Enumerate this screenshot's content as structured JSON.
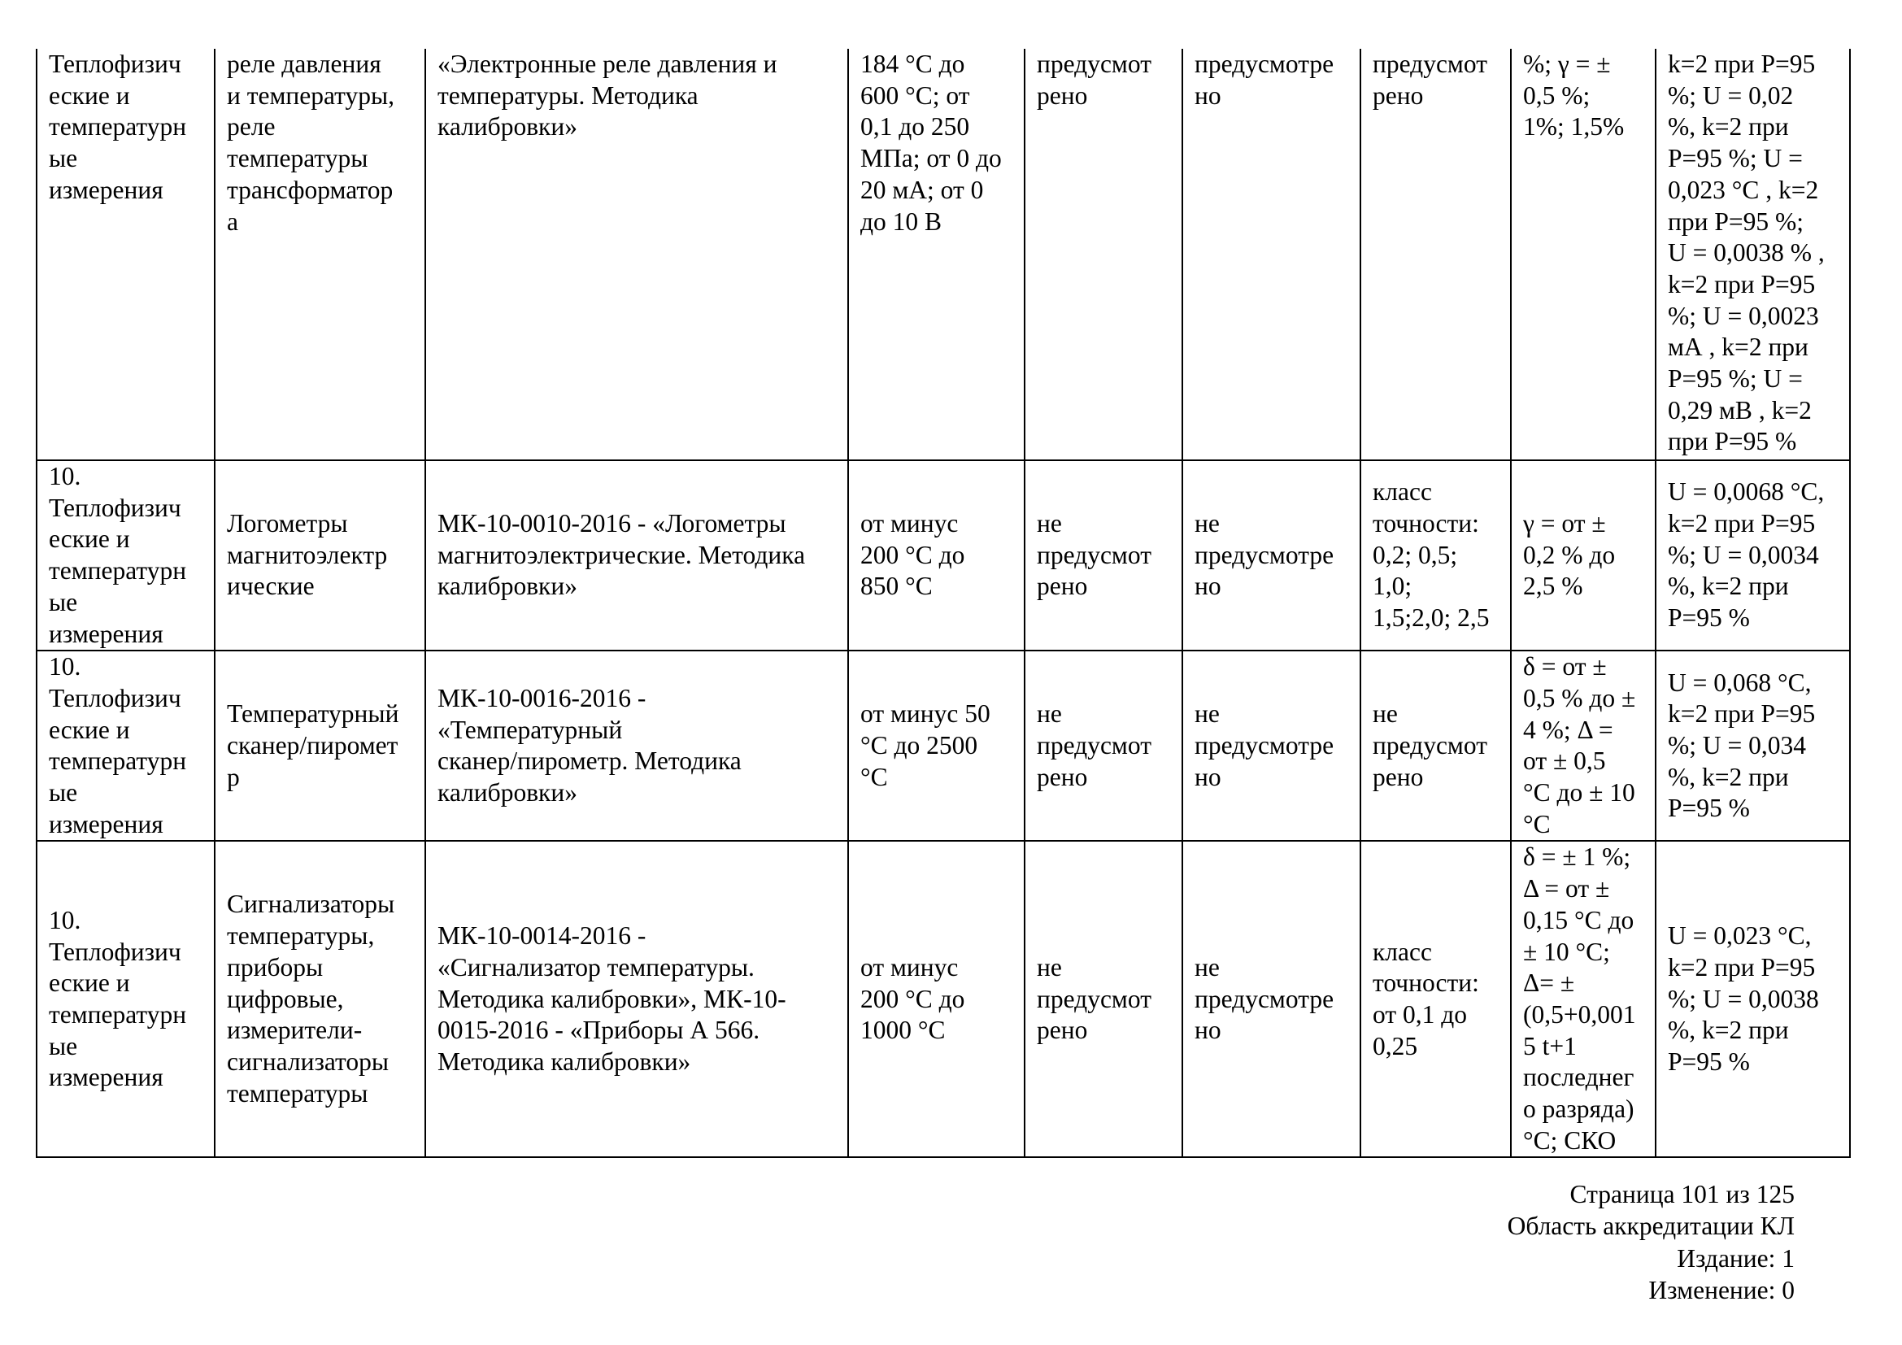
{
  "table": {
    "rows": [
      {
        "cells": [
          "Теплофизич\nеские и\nтемпературн\nые\nизмерения",
          "реле давления\nи температуры,\nреле\nтемпературы\nтрансформатор\nа",
          "«Электронные реле давления и\nтемпературы. Методика\nкалибровки»",
          "184 °С до\n600 °С; от\n0,1 до 250\nМПа; от 0 до\n20 мА; от 0\nдо 10 В",
          "предусмот\nрено",
          "предусмотре\nно",
          "предусмот\nрено",
          "%; γ = ±\n0,5 %;\n1%; 1,5%",
          "k=2 при Р=95\n%; U = 0,02\n%, k=2 при\nР=95 %; U =\n0,023 °С , k=2\nпри Р=95 %;\nU = 0,0038 % ,\nk=2 при Р=95\n%; U = 0,0023\nмА , k=2 при\nР=95 %; U =\n0,29 мВ , k=2\nпри Р=95 %"
        ]
      },
      {
        "cells": [
          "10.\nТеплофизич\nеские и\nтемпературн\nые\nизмерения",
          "Логометры\nмагнитоэлектр\nические",
          "МК-10-0010-2016 - «Логометры\nмагнитоэлектрические. Методика\nкалибровки»",
          "от минус\n200 °С до\n850 °С",
          "не\nпредусмот\nрено",
          "не\nпредусмотре\nно",
          "класс\nточности:\n0,2; 0,5;\n1,0;\n1,5;2,0; 2,5",
          "γ = от ±\n0,2 % до\n2,5 %",
          "U = 0,0068 °С,\nk=2 при Р=95\n%; U = 0,0034\n%, k=2 при\nР=95 %"
        ]
      },
      {
        "cells": [
          "10.\nТеплофизич\nеские и\nтемпературн\nые\nизмерения",
          "Температурный\nсканер/пиромет\nр",
          "МК-10-0016-2016 -\n«Температурный\nсканер/пирометр. Методика\nкалибровки»",
          "от минус 50\n°С до 2500\n°С",
          "не\nпредусмот\nрено",
          "не\nпредусмотре\nно",
          "не\nпредусмот\nрено",
          "δ = от ±\n0,5 % до ±\n4 %; Δ =\nот ± 0,5\n°С до ± 10\n°С",
          "U = 0,068 °С,\nk=2 при Р=95\n%; U = 0,034\n%, k=2 при\nР=95 %"
        ]
      },
      {
        "cells": [
          "10.\nТеплофизич\nеские и\nтемпературн\nые\nизмерения",
          "Сигнализаторы\nтемпературы,\nприборы\nцифровые,\nизмерители-\nсигнализаторы\nтемпературы",
          "МК-10-0014-2016 -\n«Сигнализатор температуры.\nМетодика калибровки», МК-10-\n0015-2016 - «Приборы А 566.\nМетодика калибровки»",
          "от минус\n200 °С до\n1000 °С",
          "не\nпредусмот\nрено",
          "не\nпредусмотре\nно",
          "класс\nточности:\nот 0,1 до\n0,25",
          "δ = ± 1 %;\nΔ = от ±\n0,15 °С до\n± 10 °С;\nΔ= ±\n(0,5+0,001\n5 t+1\nпоследнег\nо разряда)\n°С; СКО",
          "U = 0,023 °С,\nk=2 при Р=95\n%; U = 0,0038\n%, k=2 при\nР=95 %"
        ]
      }
    ]
  },
  "footer": {
    "page": "Страница 101 из 125",
    "scope": "Область аккредитации КЛ",
    "edition": "Издание: 1",
    "change": "Изменение: 0"
  }
}
